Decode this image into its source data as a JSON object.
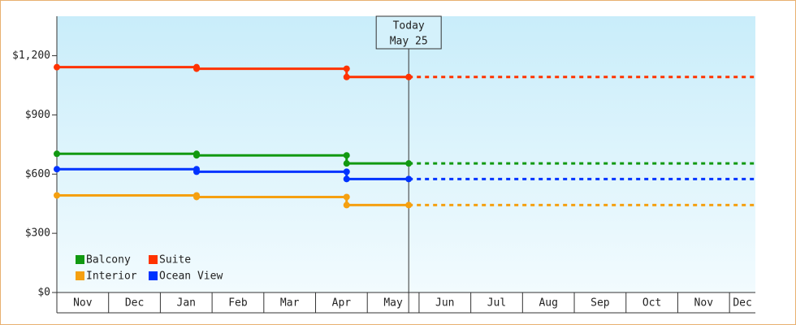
{
  "chart_data": {
    "type": "step-line",
    "categories": [
      "Nov",
      "Dec",
      "Jan",
      "Feb",
      "Mar",
      "Apr",
      "May",
      "Jun",
      "Jul",
      "Aug",
      "Sep",
      "Oct",
      "Nov",
      "Dec"
    ],
    "xlim": [
      0,
      13.5
    ],
    "ylim": [
      0,
      1400
    ],
    "yticks": [
      {
        "value": 0,
        "label": "$0"
      },
      {
        "value": 300,
        "label": "$300"
      },
      {
        "value": 600,
        "label": "$600"
      },
      {
        "value": 900,
        "label": "$900"
      },
      {
        "value": 1200,
        "label": "$1,200"
      }
    ],
    "today": {
      "x": 6.8,
      "label": [
        "Today",
        "May 25"
      ]
    },
    "series": [
      {
        "name": "Balcony",
        "color": "#119911",
        "x": [
          0,
          2.7,
          2.7,
          5.6,
          5.6,
          6.8,
          13.5
        ],
        "values": [
          703,
          703,
          695,
          695,
          654,
          654,
          654
        ]
      },
      {
        "name": "Suite",
        "color": "#ff3300",
        "x": [
          0,
          2.7,
          2.7,
          5.6,
          5.6,
          6.8,
          13.5
        ],
        "values": [
          1142,
          1142,
          1134,
          1134,
          1092,
          1092,
          1092
        ]
      },
      {
        "name": "Interior",
        "color": "#f5a010",
        "x": [
          0,
          2.7,
          2.7,
          5.6,
          5.6,
          6.8,
          13.5
        ],
        "values": [
          492,
          492,
          484,
          484,
          443,
          443,
          443
        ]
      },
      {
        "name": "Ocean View",
        "color": "#0033ff",
        "x": [
          0,
          2.7,
          2.7,
          5.6,
          5.6,
          6.8,
          13.5
        ],
        "values": [
          625,
          625,
          612,
          612,
          575,
          575,
          575
        ]
      }
    ]
  }
}
